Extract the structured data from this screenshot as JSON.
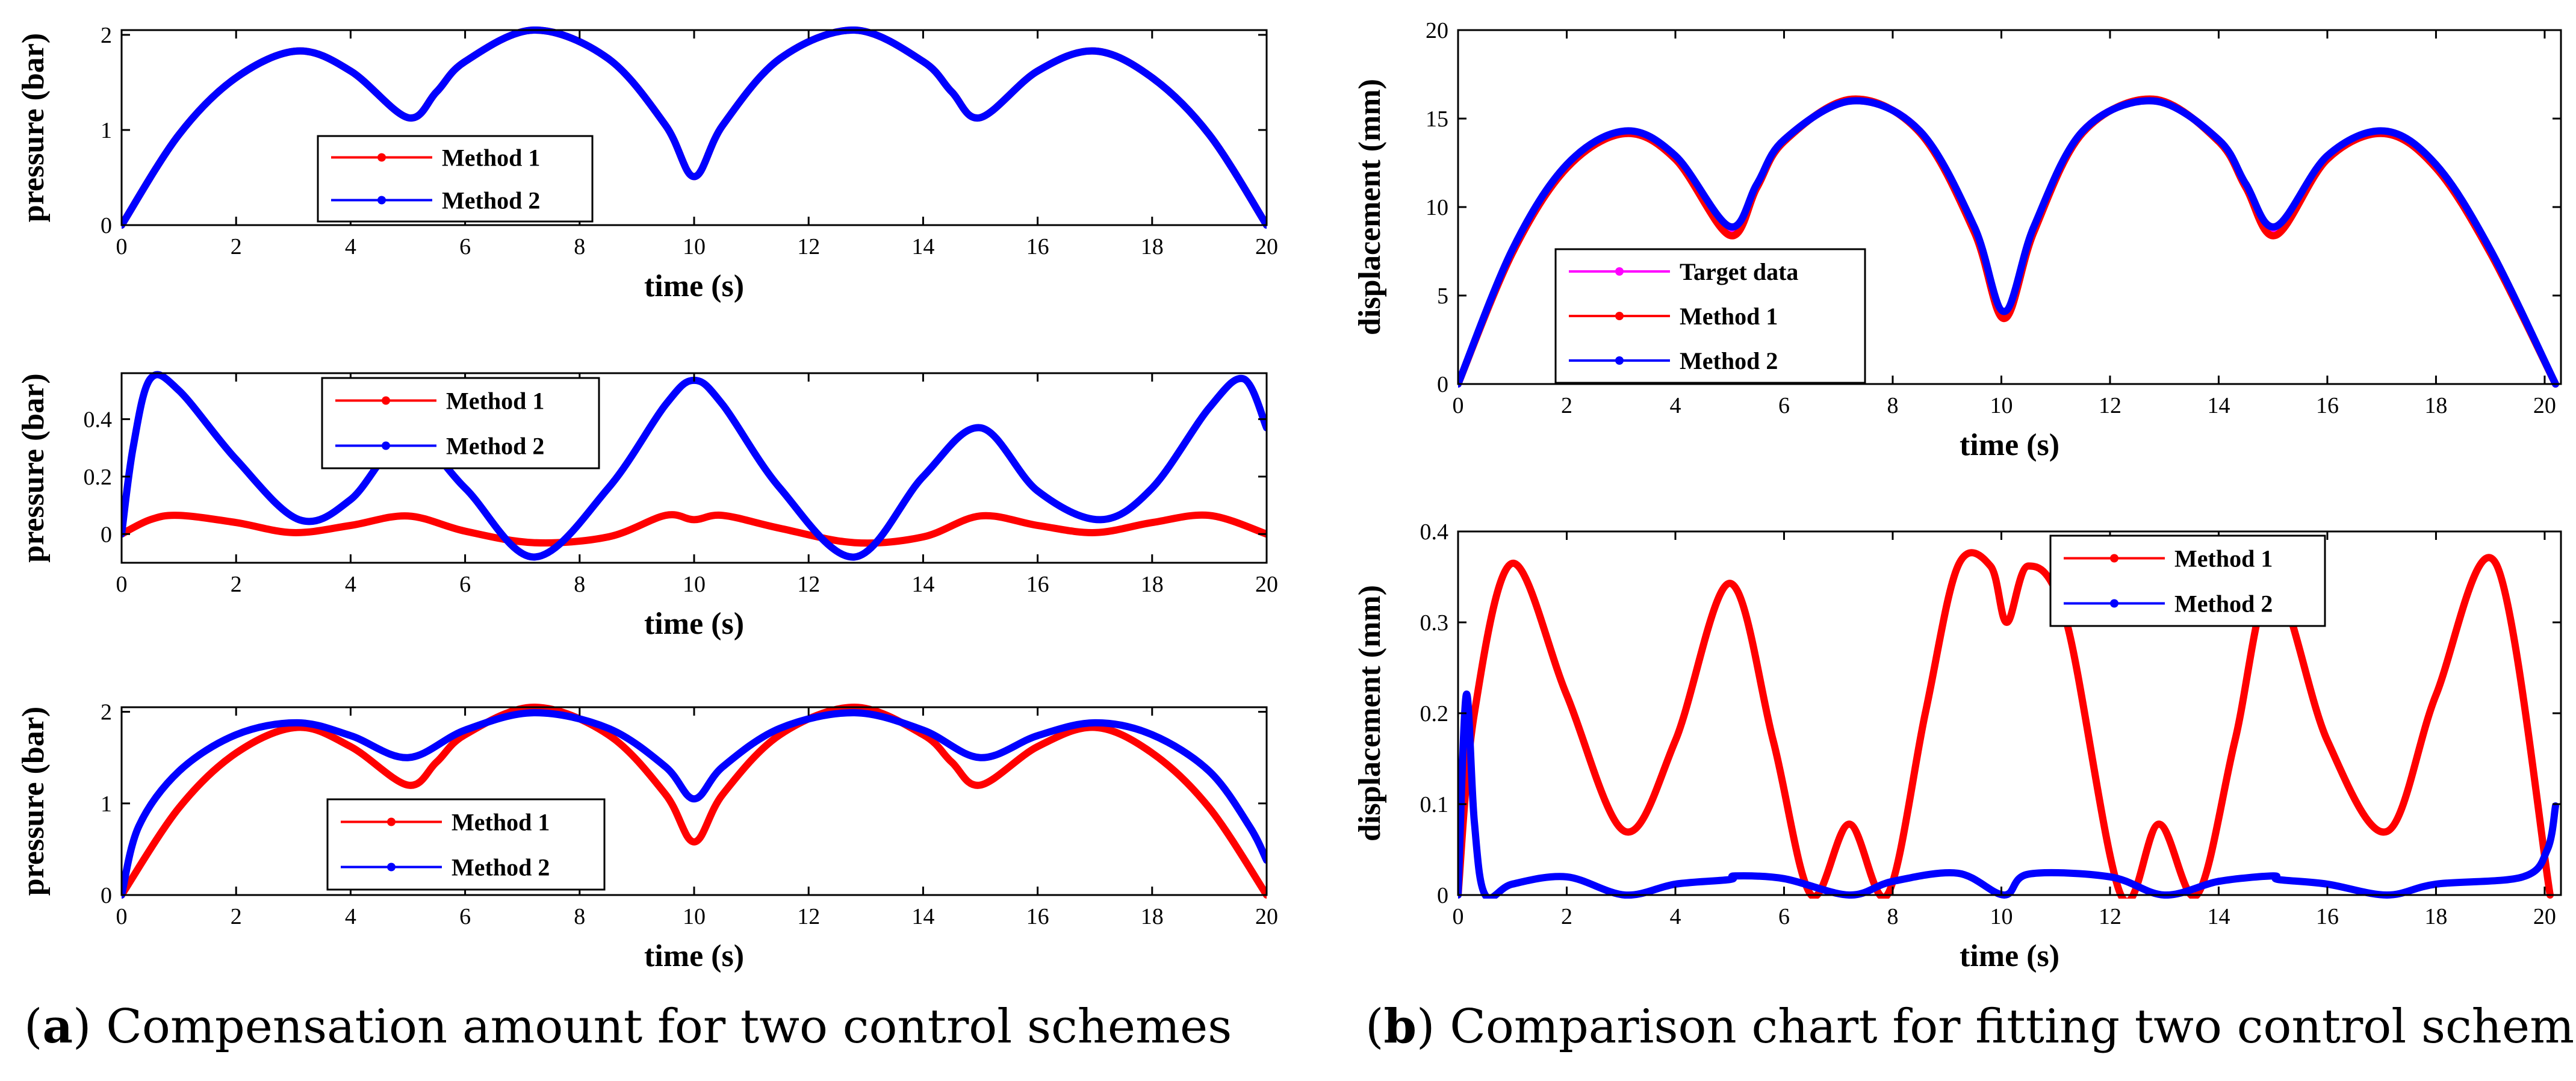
{
  "captions": {
    "a": {
      "letter": "a",
      "text": "Compensation amount for two control schemes"
    },
    "b": {
      "letter": "b",
      "text": "Comparison chart for fitting two control schemes"
    }
  },
  "colors": {
    "method1": "#ff0000",
    "method2": "#0000ff",
    "target": "#ff00ff"
  },
  "chart_data": [
    {
      "id": "a1",
      "type": "line",
      "xlabel": "time (s)",
      "ylabel": "pressure (bar)",
      "xlim": [
        0,
        20
      ],
      "ylim": [
        0,
        2.05
      ],
      "xticks": [
        0,
        2,
        4,
        6,
        8,
        10,
        12,
        14,
        16,
        18,
        20
      ],
      "yticks": [
        0,
        1,
        2
      ],
      "grid": false,
      "legend": "center-left",
      "series": [
        {
          "name": "Method 1",
          "color": "#ff0000",
          "x": [
            0,
            1,
            2,
            3.07,
            4,
            5,
            5.5,
            6,
            7.2,
            8.5,
            9.5,
            10,
            10.5,
            11.5,
            12.8,
            14,
            14.5,
            15,
            16,
            17,
            18,
            19,
            20
          ],
          "y": [
            0,
            0.95,
            1.55,
            1.83,
            1.62,
            1.13,
            1.4,
            1.72,
            2.05,
            1.75,
            1.05,
            0.51,
            1.05,
            1.75,
            2.05,
            1.72,
            1.4,
            1.13,
            1.62,
            1.83,
            1.55,
            0.95,
            0
          ]
        },
        {
          "name": "Method 2",
          "color": "#0000ff",
          "x": [
            0,
            1,
            2,
            3.07,
            4,
            5,
            5.5,
            6,
            7.2,
            8.5,
            9.5,
            10,
            10.5,
            11.5,
            12.8,
            14,
            14.5,
            15,
            16,
            17,
            18,
            19,
            20
          ],
          "y": [
            0,
            0.95,
            1.55,
            1.83,
            1.62,
            1.13,
            1.4,
            1.72,
            2.05,
            1.75,
            1.05,
            0.51,
            1.05,
            1.75,
            2.05,
            1.72,
            1.4,
            1.13,
            1.62,
            1.83,
            1.55,
            0.95,
            0
          ]
        }
      ]
    },
    {
      "id": "a2",
      "type": "line",
      "xlabel": "time (s)",
      "ylabel": "pressure (bar)",
      "xlim": [
        0,
        20
      ],
      "ylim": [
        -0.1,
        0.56
      ],
      "xticks": [
        0,
        2,
        4,
        6,
        8,
        10,
        12,
        14,
        16,
        18,
        20
      ],
      "yticks": [
        0,
        0.2,
        0.4
      ],
      "grid": false,
      "legend": "top-center",
      "series": [
        {
          "name": "Method 1",
          "color": "#ff0000",
          "x": [
            0,
            0.5,
            1,
            2,
            3,
            4,
            5,
            6,
            7.2,
            8.5,
            9.5,
            10,
            10.5,
            11.5,
            12.8,
            14,
            15,
            16,
            17,
            18,
            19,
            20
          ],
          "y": [
            0,
            0.05,
            0.065,
            0.04,
            0.005,
            0.03,
            0.063,
            0.01,
            -0.03,
            -0.01,
            0.065,
            0.05,
            0.065,
            0.02,
            -0.03,
            -0.01,
            0.063,
            0.03,
            0.005,
            0.04,
            0.065,
            0
          ]
        },
        {
          "name": "Method 2",
          "color": "#0000ff",
          "x": [
            0,
            0.2,
            0.5,
            1,
            2,
            3.1,
            4,
            5,
            6,
            7.2,
            8.5,
            9.5,
            10,
            10.5,
            11.5,
            12.8,
            14,
            15,
            16,
            17.1,
            18,
            19,
            19.6,
            20
          ],
          "y": [
            0,
            0.3,
            0.54,
            0.5,
            0.26,
            0.05,
            0.12,
            0.34,
            0.16,
            -0.08,
            0.16,
            0.45,
            0.535,
            0.45,
            0.16,
            -0.08,
            0.2,
            0.37,
            0.15,
            0.05,
            0.16,
            0.44,
            0.54,
            0.37
          ]
        }
      ]
    },
    {
      "id": "a3",
      "type": "line",
      "xlabel": "time (s)",
      "ylabel": "pressure (bar)",
      "xlim": [
        0,
        20
      ],
      "ylim": [
        0,
        2.05
      ],
      "xticks": [
        0,
        2,
        4,
        6,
        8,
        10,
        12,
        14,
        16,
        18,
        20
      ],
      "yticks": [
        0,
        1,
        2
      ],
      "grid": false,
      "legend": "bottom-center",
      "series": [
        {
          "name": "Method 1",
          "color": "#ff0000",
          "x": [
            0,
            1,
            2,
            3.07,
            4,
            5,
            5.5,
            6,
            7.2,
            8.5,
            9.5,
            10,
            10.5,
            11.5,
            12.8,
            14,
            14.5,
            15,
            16,
            17,
            18,
            19,
            20
          ],
          "y": [
            0,
            0.95,
            1.55,
            1.83,
            1.62,
            1.2,
            1.45,
            1.75,
            2.05,
            1.75,
            1.1,
            0.58,
            1.1,
            1.75,
            2.05,
            1.75,
            1.45,
            1.2,
            1.62,
            1.83,
            1.55,
            0.95,
            0
          ]
        },
        {
          "name": "Method 2",
          "color": "#0000ff",
          "x": [
            0,
            0.3,
            1,
            2,
            3.07,
            4,
            5,
            6,
            7.2,
            8.5,
            9.5,
            10,
            10.5,
            11.5,
            12.8,
            14,
            15,
            16,
            17,
            18,
            19,
            19.7,
            20
          ],
          "y": [
            0,
            0.75,
            1.35,
            1.75,
            1.88,
            1.74,
            1.5,
            1.8,
            1.99,
            1.82,
            1.4,
            1.05,
            1.4,
            1.82,
            1.99,
            1.8,
            1.5,
            1.74,
            1.88,
            1.75,
            1.35,
            0.75,
            0.38
          ]
        }
      ]
    },
    {
      "id": "b1",
      "type": "line",
      "xlabel": "time (s)",
      "ylabel": "displacement (mm)",
      "xlim": [
        0,
        20.3
      ],
      "ylim": [
        0,
        20
      ],
      "xticks": [
        0,
        2,
        4,
        6,
        8,
        10,
        12,
        14,
        16,
        18,
        20
      ],
      "yticks": [
        0,
        5,
        10,
        15,
        20
      ],
      "grid": false,
      "legend": "bottom-left",
      "series": [
        {
          "name": "Target data",
          "color": "#ff00ff",
          "x": [
            0,
            1,
            2,
            3.07,
            4,
            5,
            5.5,
            6,
            7.25,
            8.5,
            9.5,
            10.05,
            10.6,
            11.5,
            12.8,
            14,
            14.5,
            15.05,
            16,
            17.05,
            18,
            19,
            20.2
          ],
          "y": [
            0,
            7.5,
            12.3,
            14.25,
            12.8,
            8.6,
            11.2,
            13.8,
            16.0,
            14.3,
            8.8,
            3.8,
            8.8,
            14.3,
            16.0,
            13.8,
            11.2,
            8.6,
            12.8,
            14.25,
            12.3,
            7.5,
            0
          ]
        },
        {
          "name": "Method 1",
          "color": "#ff0000",
          "x": [
            0,
            1,
            2,
            3.07,
            4,
            5,
            5.5,
            6,
            7.25,
            8.5,
            9.5,
            10.05,
            10.6,
            11.5,
            12.8,
            14,
            14.5,
            15.05,
            16,
            17.05,
            18,
            19,
            20.2
          ],
          "y": [
            0,
            7.4,
            12.2,
            14.15,
            12.7,
            8.4,
            11.1,
            13.7,
            16.1,
            14.2,
            8.6,
            3.7,
            8.6,
            14.2,
            16.1,
            13.7,
            11.1,
            8.4,
            12.7,
            14.15,
            12.2,
            7.4,
            0
          ]
        },
        {
          "name": "Method 2",
          "color": "#0000ff",
          "x": [
            0,
            1,
            2,
            3.07,
            4,
            5,
            5.5,
            6,
            7.25,
            8.5,
            9.5,
            10.05,
            10.6,
            11.5,
            12.8,
            14,
            14.5,
            15.05,
            16,
            17.05,
            18,
            19,
            20.2
          ],
          "y": [
            0,
            7.6,
            12.4,
            14.3,
            12.9,
            8.9,
            11.3,
            13.8,
            16.0,
            14.3,
            8.9,
            4.1,
            8.9,
            14.3,
            16.0,
            13.8,
            11.3,
            8.9,
            12.9,
            14.3,
            12.4,
            7.6,
            0
          ]
        }
      ]
    },
    {
      "id": "b2",
      "type": "line",
      "xlabel": "time (s)",
      "ylabel": "displacement (mm)",
      "xlim": [
        0,
        20.3
      ],
      "ylim": [
        0,
        0.4
      ],
      "xticks": [
        0,
        2,
        4,
        6,
        8,
        10,
        12,
        14,
        16,
        18,
        20
      ],
      "yticks": [
        0,
        0.1,
        0.2,
        0.3,
        0.4
      ],
      "grid": false,
      "legend": "top-right",
      "series": [
        {
          "name": "Method 1",
          "color": "#ff0000",
          "x": [
            0,
            0.3,
            1,
            2,
            3.07,
            4,
            5,
            5.8,
            6.5,
            7.2,
            7.9,
            8.6,
            9.2,
            9.8,
            10.1,
            10.5,
            11.2,
            12.2,
            12.9,
            13.6,
            14.3,
            15,
            16,
            17.1,
            18,
            19.1,
            20.1
          ],
          "y": [
            0,
            0.2,
            0.365,
            0.22,
            0.07,
            0.17,
            0.343,
            0.17,
            0,
            0.078,
            0,
            0.2,
            0.362,
            0.362,
            0.3,
            0.362,
            0.3,
            0,
            0.078,
            0,
            0.17,
            0.343,
            0.17,
            0.07,
            0.22,
            0.365,
            0
          ]
        },
        {
          "name": "Method 2",
          "color": "#0000ff",
          "x": [
            0,
            0.15,
            0.3,
            0.5,
            1,
            2,
            3.07,
            4,
            5,
            5.1,
            6,
            7.2,
            8,
            9.2,
            10.05,
            10.5,
            12,
            13,
            14,
            15,
            15.1,
            16,
            17.1,
            18,
            19.6,
            20.05,
            20.2
          ],
          "y": [
            0,
            0.22,
            0.08,
            0,
            0.012,
            0.02,
            0,
            0.012,
            0.017,
            0.021,
            0.018,
            0,
            0.015,
            0.024,
            0,
            0.023,
            0.02,
            0,
            0.015,
            0.021,
            0.017,
            0.012,
            0,
            0.012,
            0.02,
            0.05,
            0.098
          ]
        }
      ]
    }
  ]
}
